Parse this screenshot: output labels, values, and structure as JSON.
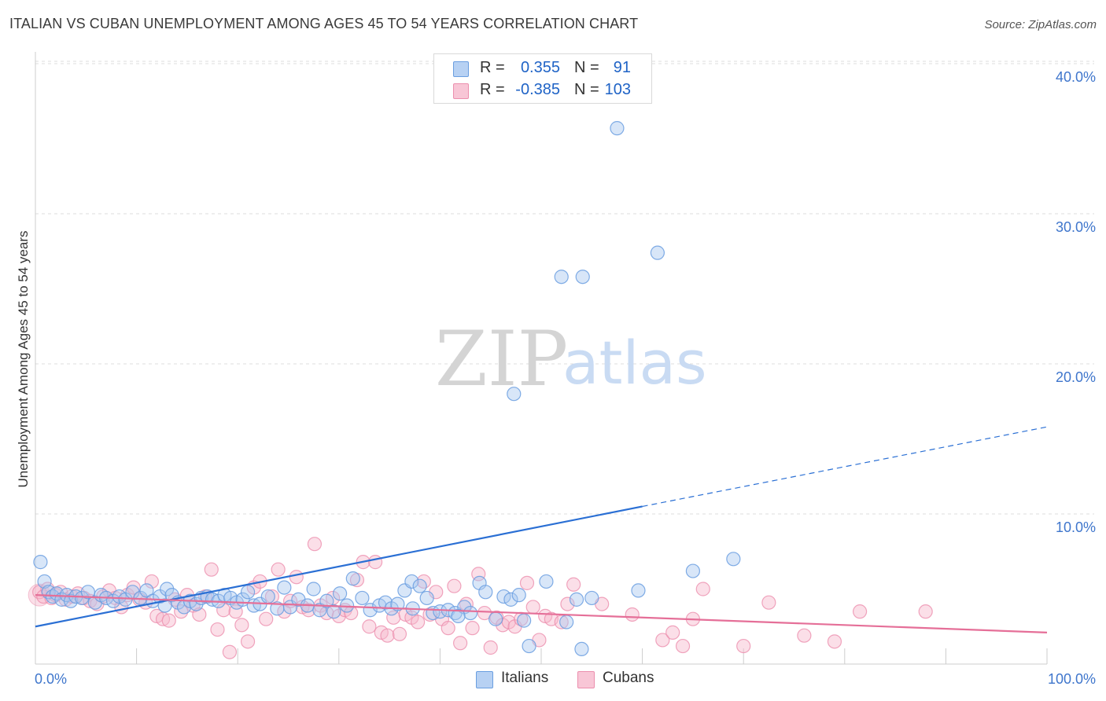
{
  "title": "ITALIAN VS CUBAN UNEMPLOYMENT AMONG AGES 45 TO 54 YEARS CORRELATION CHART",
  "source": "Source: ZipAtlas.com",
  "watermark": {
    "zip": "ZIP",
    "atlas": "atlas"
  },
  "legend": {
    "italians": {
      "r_label": "R =",
      "r_value": "0.355",
      "n_label": "N =",
      "n_value": "91"
    },
    "cubans": {
      "r_label": "R =",
      "r_value": "-0.385",
      "n_label": "N =",
      "n_value": "103"
    }
  },
  "bottom_legend": {
    "italians": "Italians",
    "cubans": "Cubans"
  },
  "colors": {
    "italians_fill": "#a9c8f0",
    "italians_stroke": "#6a9ee0",
    "italians_line": "#2a6fd4",
    "cubans_fill": "#f6b8cb",
    "cubans_stroke": "#ec8fae",
    "cubans_line": "#e56f98",
    "tick_label": "#3f76cc",
    "grid": "#dddddd"
  },
  "chart_data": {
    "type": "scatter",
    "title": "ITALIAN VS CUBAN UNEMPLOYMENT AMONG AGES 45 TO 54 YEARS CORRELATION CHART",
    "xlabel": "",
    "ylabel": "Unemployment Among Ages 45 to 54 years",
    "xlim": [
      0,
      100
    ],
    "ylim": [
      0,
      42
    ],
    "x_tick_labels": [
      "0.0%",
      "100.0%"
    ],
    "y_ticks": [
      10,
      20,
      30,
      40
    ],
    "y_tick_labels": [
      "10.0%",
      "20.0%",
      "30.0%",
      "40.0%"
    ],
    "grid": true,
    "legend_position": "top-center",
    "series": [
      {
        "name": "Italians",
        "trend": {
          "x0": 0,
          "y0": 2.5,
          "x1": 60,
          "y1": 10.5,
          "dashed_to_x": 100,
          "dashed_to_y": 15.8
        },
        "points": [
          [
            0.5,
            6.8
          ],
          [
            0.9,
            5.5
          ],
          [
            1.3,
            4.8
          ],
          [
            1.7,
            4.5
          ],
          [
            2.1,
            4.7
          ],
          [
            2.6,
            4.3
          ],
          [
            3.1,
            4.6
          ],
          [
            3.5,
            4.2
          ],
          [
            4.0,
            4.5
          ],
          [
            4.6,
            4.4
          ],
          [
            5.2,
            4.8
          ],
          [
            5.9,
            4.1
          ],
          [
            6.5,
            4.6
          ],
          [
            7.0,
            4.4
          ],
          [
            7.7,
            4.2
          ],
          [
            8.3,
            4.5
          ],
          [
            8.9,
            4.3
          ],
          [
            9.6,
            4.8
          ],
          [
            10.4,
            4.4
          ],
          [
            11.0,
            4.9
          ],
          [
            11.6,
            4.2
          ],
          [
            12.3,
            4.5
          ],
          [
            12.8,
            3.9
          ],
          [
            13.0,
            5.0
          ],
          [
            13.5,
            4.6
          ],
          [
            14.1,
            4.1
          ],
          [
            14.7,
            3.8
          ],
          [
            15.3,
            4.2
          ],
          [
            15.9,
            4.0
          ],
          [
            16.4,
            4.4
          ],
          [
            17.0,
            4.5
          ],
          [
            17.5,
            4.3
          ],
          [
            18.1,
            4.2
          ],
          [
            18.7,
            4.6
          ],
          [
            19.3,
            4.4
          ],
          [
            19.9,
            4.1
          ],
          [
            20.5,
            4.3
          ],
          [
            21.0,
            4.8
          ],
          [
            21.6,
            3.9
          ],
          [
            22.2,
            4.0
          ],
          [
            23.0,
            4.5
          ],
          [
            23.9,
            3.7
          ],
          [
            24.6,
            5.1
          ],
          [
            25.2,
            3.8
          ],
          [
            26.0,
            4.3
          ],
          [
            26.9,
            3.9
          ],
          [
            27.5,
            5.0
          ],
          [
            28.1,
            3.6
          ],
          [
            28.8,
            4.2
          ],
          [
            29.5,
            3.5
          ],
          [
            30.1,
            4.7
          ],
          [
            30.8,
            3.9
          ],
          [
            31.4,
            5.7
          ],
          [
            32.3,
            4.4
          ],
          [
            33.1,
            3.6
          ],
          [
            34.0,
            3.9
          ],
          [
            34.6,
            4.1
          ],
          [
            35.2,
            3.7
          ],
          [
            35.8,
            4.0
          ],
          [
            36.5,
            4.9
          ],
          [
            37.2,
            5.5
          ],
          [
            38.0,
            5.2
          ],
          [
            38.7,
            4.4
          ],
          [
            39.3,
            3.4
          ],
          [
            40.0,
            3.5
          ],
          [
            40.8,
            3.6
          ],
          [
            41.5,
            3.4
          ],
          [
            42.4,
            3.8
          ],
          [
            43.0,
            3.4
          ],
          [
            43.9,
            5.4
          ],
          [
            44.5,
            4.8
          ],
          [
            45.5,
            3.0
          ],
          [
            46.3,
            4.5
          ],
          [
            47.0,
            4.3
          ],
          [
            47.8,
            4.6
          ],
          [
            48.3,
            2.9
          ],
          [
            48.8,
            1.2
          ],
          [
            50.5,
            5.5
          ],
          [
            53.5,
            4.3
          ],
          [
            54.0,
            1.0
          ],
          [
            55.0,
            4.4
          ],
          [
            59.6,
            4.9
          ],
          [
            65.0,
            6.2
          ],
          [
            69.0,
            7.0
          ],
          [
            37.3,
            3.7
          ],
          [
            41.8,
            3.2
          ],
          [
            52.5,
            2.8
          ],
          [
            47.3,
            18.0
          ],
          [
            52.0,
            25.8
          ],
          [
            54.1,
            25.8
          ],
          [
            57.5,
            35.7
          ],
          [
            61.5,
            27.4
          ]
        ]
      },
      {
        "name": "Cubans",
        "trend": {
          "x0": 0,
          "y0": 4.6,
          "x1": 100,
          "y1": 2.1
        },
        "points": [
          [
            0.4,
            4.8
          ],
          [
            0.8,
            4.5
          ],
          [
            1.2,
            5.0
          ],
          [
            1.6,
            4.4
          ],
          [
            2.0,
            4.6
          ],
          [
            2.5,
            4.8
          ],
          [
            3.0,
            4.3
          ],
          [
            3.6,
            4.5
          ],
          [
            4.2,
            4.7
          ],
          [
            4.8,
            4.4
          ],
          [
            5.4,
            4.2
          ],
          [
            6.1,
            4.0
          ],
          [
            6.7,
            4.5
          ],
          [
            7.3,
            4.9
          ],
          [
            7.9,
            4.4
          ],
          [
            8.5,
            3.8
          ],
          [
            9.1,
            4.6
          ],
          [
            9.7,
            5.1
          ],
          [
            10.3,
            4.3
          ],
          [
            10.9,
            4.1
          ],
          [
            11.5,
            5.5
          ],
          [
            12.0,
            3.2
          ],
          [
            12.6,
            3.0
          ],
          [
            13.2,
            2.9
          ],
          [
            13.8,
            4.3
          ],
          [
            14.4,
            3.5
          ],
          [
            15.0,
            4.6
          ],
          [
            15.6,
            3.9
          ],
          [
            16.2,
            3.3
          ],
          [
            16.8,
            4.5
          ],
          [
            17.4,
            6.3
          ],
          [
            18.0,
            2.3
          ],
          [
            18.6,
            3.6
          ],
          [
            19.2,
            0.8
          ],
          [
            19.8,
            3.5
          ],
          [
            20.4,
            2.6
          ],
          [
            21.0,
            1.5
          ],
          [
            21.6,
            5.1
          ],
          [
            22.2,
            5.5
          ],
          [
            22.8,
            3.0
          ],
          [
            23.4,
            4.5
          ],
          [
            24.0,
            6.3
          ],
          [
            24.6,
            3.5
          ],
          [
            25.2,
            4.2
          ],
          [
            25.8,
            5.8
          ],
          [
            26.4,
            3.8
          ],
          [
            27.0,
            3.6
          ],
          [
            27.6,
            8.0
          ],
          [
            28.2,
            3.9
          ],
          [
            28.8,
            3.4
          ],
          [
            29.4,
            4.4
          ],
          [
            30.0,
            3.2
          ],
          [
            30.6,
            3.6
          ],
          [
            31.2,
            3.4
          ],
          [
            31.8,
            5.6
          ],
          [
            32.4,
            6.8
          ],
          [
            33.0,
            2.5
          ],
          [
            33.6,
            6.8
          ],
          [
            34.2,
            2.1
          ],
          [
            34.8,
            1.9
          ],
          [
            35.4,
            3.1
          ],
          [
            36.0,
            2.0
          ],
          [
            36.6,
            3.3
          ],
          [
            37.2,
            3.1
          ],
          [
            37.8,
            2.8
          ],
          [
            38.4,
            5.5
          ],
          [
            39.0,
            3.3
          ],
          [
            39.6,
            4.8
          ],
          [
            40.2,
            3.0
          ],
          [
            40.8,
            2.4
          ],
          [
            41.4,
            5.2
          ],
          [
            42.0,
            1.4
          ],
          [
            42.6,
            4.0
          ],
          [
            43.2,
            2.4
          ],
          [
            43.8,
            6.0
          ],
          [
            44.4,
            3.4
          ],
          [
            45.0,
            1.1
          ],
          [
            45.6,
            3.1
          ],
          [
            46.2,
            2.6
          ],
          [
            46.8,
            2.8
          ],
          [
            47.4,
            2.5
          ],
          [
            48.0,
            3.0
          ],
          [
            48.6,
            5.4
          ],
          [
            49.2,
            3.8
          ],
          [
            49.8,
            1.6
          ],
          [
            50.4,
            3.2
          ],
          [
            51.0,
            3.0
          ],
          [
            52.0,
            2.8
          ],
          [
            52.6,
            4.0
          ],
          [
            53.2,
            5.3
          ],
          [
            56.0,
            4.0
          ],
          [
            59.0,
            3.3
          ],
          [
            62.0,
            1.6
          ],
          [
            63.0,
            2.1
          ],
          [
            64.0,
            1.2
          ],
          [
            65.0,
            3.0
          ],
          [
            66.0,
            5.0
          ],
          [
            70.0,
            1.2
          ],
          [
            72.5,
            4.1
          ],
          [
            76.0,
            1.9
          ],
          [
            79.0,
            1.5
          ],
          [
            81.5,
            3.5
          ],
          [
            88.0,
            3.5
          ]
        ]
      }
    ]
  }
}
